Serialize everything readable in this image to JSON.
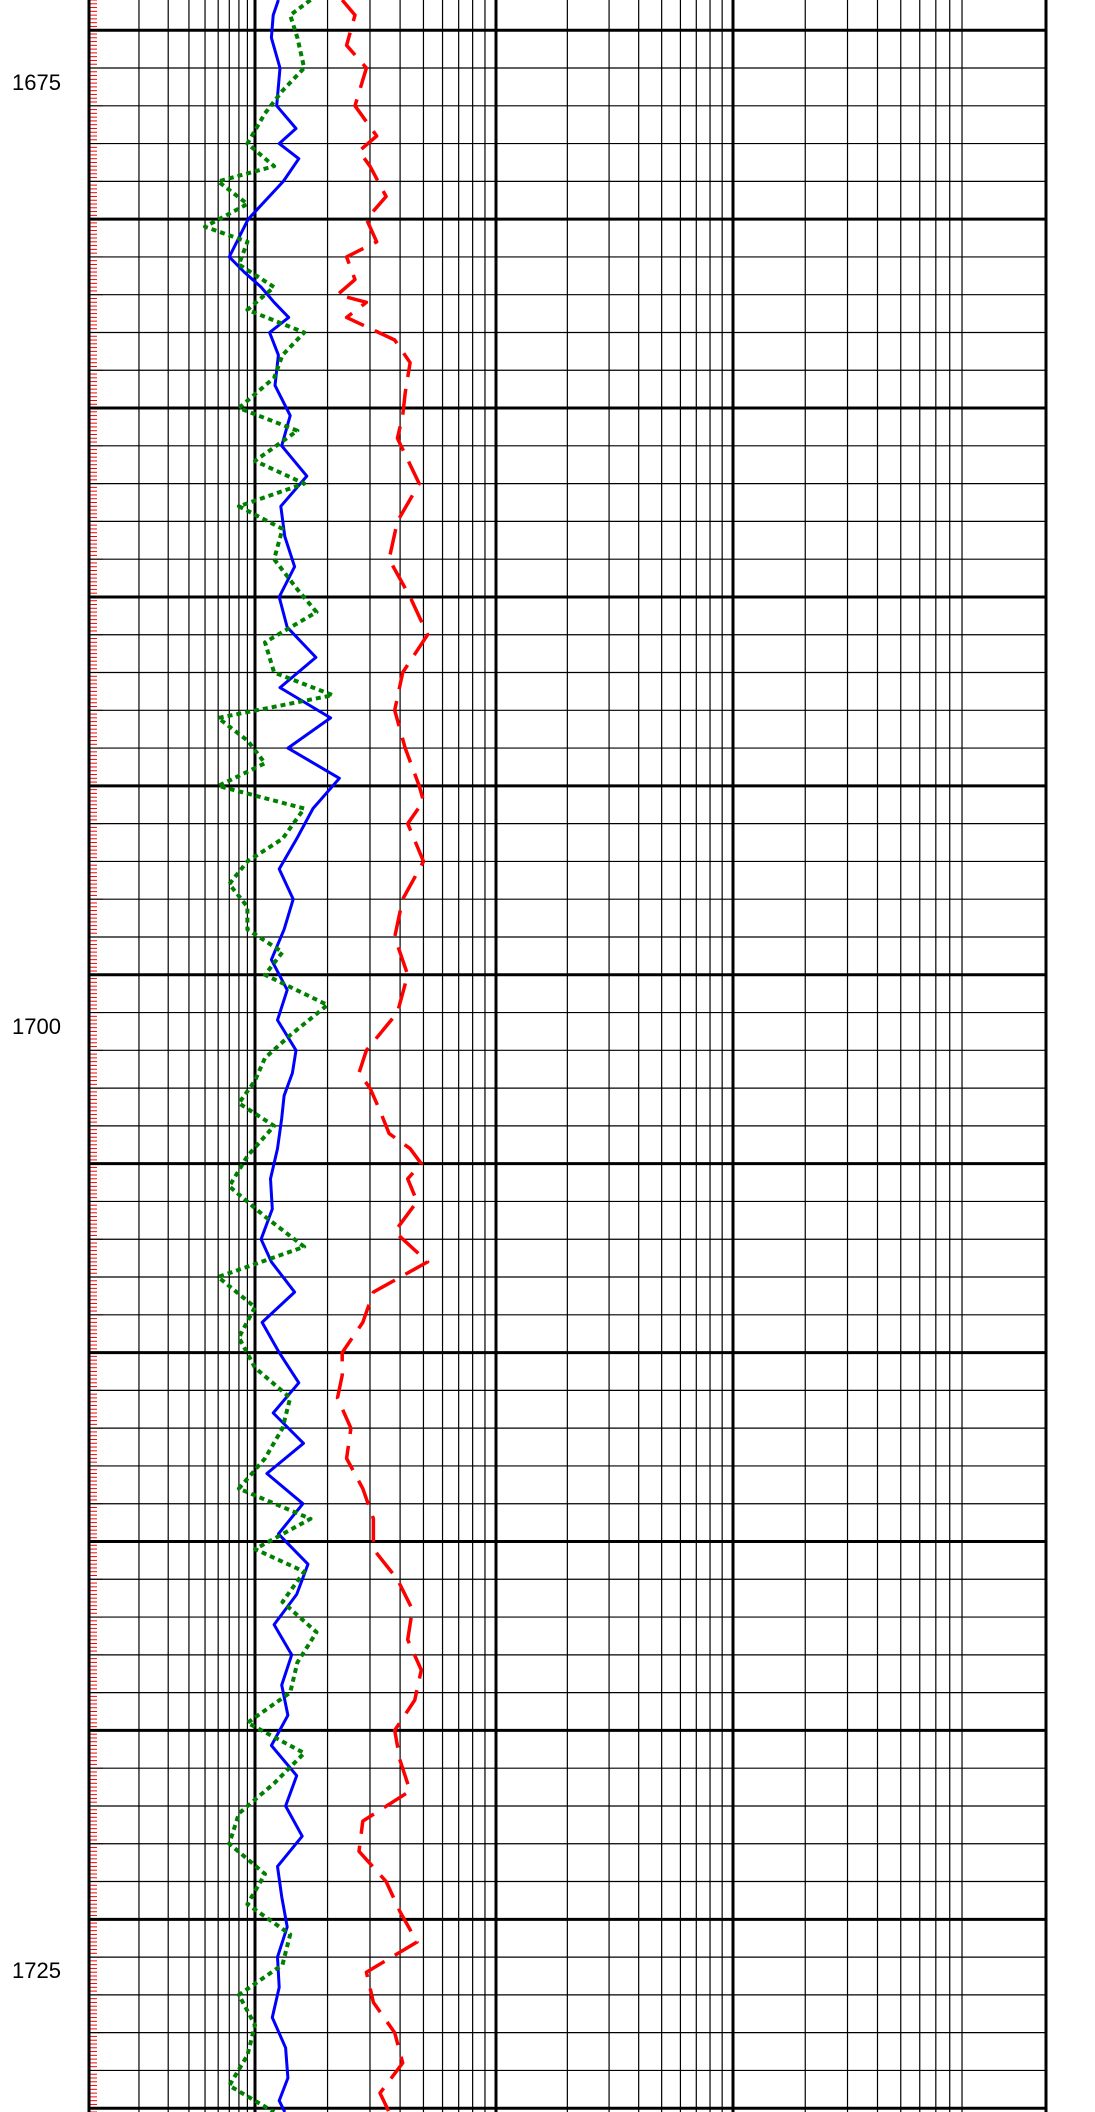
{
  "chart_data": {
    "type": "line",
    "title": "",
    "xlabel": "",
    "ylabel": "",
    "x_scale": "log",
    "y_axis": "depth",
    "ylim": [
      1669.2,
      1725.1
    ],
    "depth_ticks": [
      "1675",
      "1700",
      "1725"
    ],
    "grid": true,
    "colors": {
      "grid": "#000000",
      "depth_ruler": "#ff0000",
      "series_red": "#ff0000",
      "series_blue": "#0000ff",
      "series_green": "#008000"
    },
    "series": [
      {
        "color_key": "series_red",
        "style": "long-dash",
        "depth": [
          1669.2,
          1669.6,
          1670.4,
          1671.0,
          1672.0,
          1672.8,
          1673.2,
          1673.6,
          1674.4,
          1675.0,
          1675.6,
          1676.0,
          1676.6,
          1677.0,
          1677.2,
          1677.6,
          1678.2,
          1678.8,
          1679.6,
          1680.2,
          1680.8,
          1682.0,
          1683.0,
          1684.0,
          1685.0,
          1686.0,
          1687.0,
          1688.0,
          1689.0,
          1690.0,
          1690.4,
          1691.0,
          1692.0,
          1693.0,
          1694.0,
          1695.0,
          1696.0,
          1697.0,
          1697.6,
          1698.0,
          1698.6,
          1699.2,
          1699.6,
          1700.0,
          1700.4,
          1701.0,
          1701.8,
          1702.6,
          1703.4,
          1704.2,
          1705.0,
          1705.6,
          1706.2,
          1707.0,
          1707.8,
          1708.6,
          1709.4,
          1710.2,
          1711.0,
          1711.8,
          1712.6,
          1713.4,
          1714.2,
          1715.0,
          1715.8,
          1716.6,
          1717.4,
          1718.2,
          1719.0,
          1719.8,
          1720.6,
          1721.4,
          1722.2,
          1723.0,
          1723.8,
          1724.6,
          1725.1
        ],
        "values": [
          23,
          26,
          24,
          29,
          26,
          32,
          27,
          30,
          35,
          29,
          32,
          24,
          26,
          22,
          29,
          24,
          38,
          44,
          42,
          41,
          39,
          48,
          39,
          36,
          44,
          52,
          41,
          38,
          42,
          48,
          50,
          43,
          50,
          41,
          38,
          43,
          39,
          29,
          27,
          30,
          33,
          36,
          44,
          49,
          43,
          47,
          38,
          52,
          31,
          28,
          23,
          23,
          22,
          25,
          24,
          28,
          31,
          31,
          39,
          45,
          43,
          49,
          46,
          38,
          40,
          44,
          28,
          27,
          35,
          40,
          47,
          29,
          31,
          38,
          41,
          33,
          36
        ]
      },
      {
        "color_key": "series_blue",
        "style": "solid",
        "depth": [
          1669.2,
          1669.6,
          1670.2,
          1671.0,
          1672.0,
          1672.6,
          1673.0,
          1673.4,
          1674.0,
          1675.0,
          1676.0,
          1676.4,
          1676.8,
          1677.2,
          1677.6,
          1678.0,
          1678.6,
          1679.4,
          1680.2,
          1681.0,
          1681.8,
          1682.6,
          1683.4,
          1684.2,
          1685.0,
          1685.8,
          1686.6,
          1687.4,
          1688.2,
          1689.0,
          1689.8,
          1690.6,
          1691.4,
          1692.2,
          1693.0,
          1693.8,
          1694.6,
          1695.4,
          1696.2,
          1697.0,
          1697.6,
          1698.2,
          1698.8,
          1699.6,
          1700.4,
          1701.2,
          1702.0,
          1702.6,
          1703.4,
          1704.2,
          1705.0,
          1705.8,
          1706.6,
          1707.4,
          1708.2,
          1709.0,
          1709.8,
          1710.6,
          1711.4,
          1712.2,
          1713.0,
          1713.8,
          1714.6,
          1715.4,
          1716.2,
          1717.0,
          1717.8,
          1718.6,
          1719.4,
          1720.2,
          1721.0,
          1721.8,
          1722.6,
          1723.4,
          1724.2,
          1724.8,
          1725.1
        ],
        "values": [
          12.5,
          11.9,
          11.7,
          12.7,
          12.3,
          14.8,
          12.6,
          15.2,
          13.1,
          9.1,
          7.0,
          8.6,
          10.6,
          12.0,
          13.8,
          11.5,
          12.5,
          12.1,
          14.0,
          12.9,
          16.4,
          12.8,
          13.3,
          14.6,
          12.6,
          13.6,
          17.9,
          12.7,
          20.6,
          13.7,
          22.4,
          17.4,
          14.9,
          12.6,
          14.4,
          13.2,
          11.7,
          13.6,
          12.4,
          14.8,
          14.3,
          13.2,
          12.9,
          12.4,
          11.6,
          11.8,
          10.6,
          11.7,
          14.6,
          10.7,
          12.6,
          15.2,
          11.9,
          15.9,
          11.2,
          15.8,
          12.5,
          16.6,
          14.9,
          12.0,
          14.2,
          12.9,
          13.7,
          11.7,
          14.9,
          13.4,
          15.7,
          12.4,
          12.9,
          13.6,
          12.4,
          12.6,
          11.8,
          13.4,
          13.7,
          12.6,
          13.3
        ]
      },
      {
        "color_key": "series_green",
        "style": "dotted",
        "depth": [
          1669.2,
          1669.6,
          1670.2,
          1671.0,
          1671.6,
          1672.2,
          1673.0,
          1673.6,
          1674.0,
          1674.6,
          1675.2,
          1675.6,
          1676.2,
          1676.8,
          1677.4,
          1678.0,
          1678.6,
          1679.2,
          1680.0,
          1680.6,
          1681.4,
          1682.0,
          1682.6,
          1683.2,
          1684.0,
          1684.8,
          1685.4,
          1686.2,
          1687.0,
          1687.6,
          1688.2,
          1688.8,
          1689.4,
          1690.0,
          1690.6,
          1691.4,
          1692.0,
          1692.6,
          1693.2,
          1693.8,
          1694.4,
          1695.0,
          1695.8,
          1696.6,
          1697.2,
          1697.8,
          1698.4,
          1699.0,
          1699.8,
          1700.6,
          1701.4,
          1702.2,
          1703.0,
          1703.8,
          1704.6,
          1705.4,
          1706.2,
          1707.0,
          1707.8,
          1708.6,
          1709.4,
          1710.2,
          1710.8,
          1711.6,
          1712.4,
          1713.2,
          1714.0,
          1714.8,
          1715.6,
          1716.4,
          1717.2,
          1718.0,
          1718.8,
          1719.6,
          1720.4,
          1721.2,
          1722.0,
          1722.8,
          1723.6,
          1724.4,
          1725.1
        ],
        "values": [
          17,
          14,
          15,
          16,
          13,
          11,
          9,
          12,
          6,
          9,
          5,
          9,
          8,
          12,
          9,
          16,
          13,
          12,
          8,
          15,
          10,
          16,
          8,
          13,
          12,
          15,
          18,
          11,
          12,
          21,
          6,
          9,
          11,
          6,
          16,
          13,
          9,
          7,
          9,
          9,
          13,
          11,
          20,
          14,
          11,
          10,
          8,
          12,
          9,
          7,
          11,
          16,
          6,
          10,
          8,
          10,
          14,
          13,
          11,
          8,
          17,
          10,
          16,
          13,
          18,
          15,
          14,
          9,
          16,
          12,
          8,
          7,
          11,
          9,
          14,
          13,
          8,
          10,
          9,
          7,
          12
        ]
      }
    ]
  }
}
